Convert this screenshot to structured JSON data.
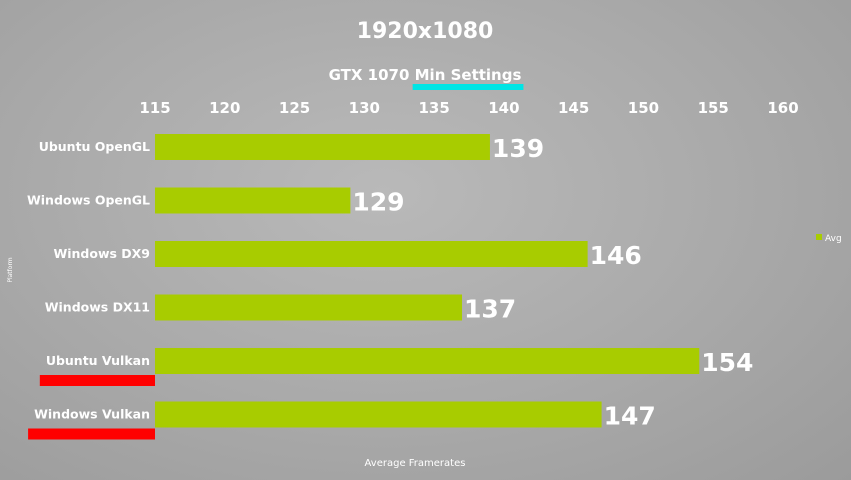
{
  "chart_data": {
    "type": "bar",
    "orientation": "horizontal",
    "title": "1920x1080",
    "subtitle": "GTX 1070 Min Settings",
    "categories": [
      "Ubuntu OpenGL",
      "Windows OpenGL",
      "Windows DX9",
      "Windows DX11",
      "Ubuntu Vulkan",
      "Windows Vulkan"
    ],
    "series": [
      {
        "name": "Avg",
        "values": [
          139,
          129,
          146,
          137,
          154,
          147
        ]
      }
    ],
    "xlim": [
      115,
      160
    ],
    "xticks": [
      115,
      120,
      125,
      130,
      135,
      140,
      145,
      150,
      155,
      160
    ],
    "xlabel": "Average Framerates",
    "ylabel": "Platform",
    "highlighted_categories": [
      "Ubuntu Vulkan",
      "Windows Vulkan"
    ],
    "highlighted_subtitle_part": "Min Settings",
    "legend_position": "right",
    "colors": {
      "bar": "#a8cc00",
      "highlight_underline": "#ff0000",
      "subtitle_underline": "#00e5e5",
      "text": "#ffffff"
    }
  }
}
